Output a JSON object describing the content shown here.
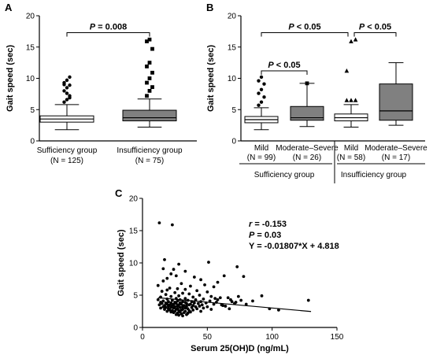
{
  "chart_data": [
    {
      "panel": "A",
      "type": "box",
      "ylabel": "Gait speed (sec)",
      "ylim": [
        0,
        20
      ],
      "yticks": [
        0,
        5,
        10,
        15,
        20
      ],
      "categories": [
        {
          "name": "Sufficiency group",
          "n": "(N = 125)",
          "fill": "#ffffff"
        },
        {
          "name": "Insufficiency group",
          "n": "(N = 75)",
          "fill": "#808080"
        }
      ],
      "boxes": [
        {
          "whisker_low": 1.8,
          "q1": 3.0,
          "median": 3.5,
          "q3": 4.0,
          "whisker_high": 5.8,
          "outliers": [
            6.2,
            6.6,
            7.2,
            8.0,
            8.5,
            8.9,
            9.3,
            9.7,
            10.2,
            9.0,
            7.6,
            6.9
          ]
        },
        {
          "whisker_low": 2.2,
          "q1": 3.2,
          "median": 3.7,
          "q3": 4.9,
          "whisker_high": 6.7,
          "outliers": [
            7.2,
            8.0,
            8.6,
            9.3,
            10.0,
            10.9,
            11.9,
            12.5,
            14.7,
            15.9,
            16.2
          ]
        }
      ],
      "comparisons": [
        {
          "from": 0,
          "to": 1,
          "y": 17.3,
          "label": "P = 0.008"
        }
      ]
    },
    {
      "panel": "B",
      "type": "box",
      "ylabel": "Gait speed (sec)",
      "ylim": [
        0,
        20
      ],
      "yticks": [
        0,
        5,
        10,
        15,
        20
      ],
      "categories": [
        {
          "name": "Mild",
          "n": "(N = 99)",
          "fill": "#ffffff"
        },
        {
          "name": "Moderate–Severe",
          "n": "(N = 26)",
          "fill": "#808080"
        },
        {
          "name": "Mild",
          "n": "(N = 58)",
          "fill": "#ffffff"
        },
        {
          "name": "Moderate–Severe",
          "n": "(N = 17)",
          "fill": "#808080"
        }
      ],
      "groups": [
        {
          "label": "Sufficiency group",
          "members": [
            0,
            1
          ]
        },
        {
          "label": "Insufficiency group",
          "members": [
            2,
            3
          ]
        }
      ],
      "boxes": [
        {
          "whisker_low": 1.8,
          "q1": 2.9,
          "median": 3.4,
          "q3": 3.9,
          "whisker_high": 5.3,
          "outliers": [
            5.7,
            6.2,
            7.0,
            7.6,
            8.2,
            9.1,
            9.6,
            10.2
          ]
        },
        {
          "whisker_low": 2.3,
          "q1": 3.3,
          "median": 3.7,
          "q3": 5.5,
          "whisker_high": 9.2,
          "outliers": [
            9.2
          ]
        },
        {
          "whisker_low": 2.2,
          "q1": 3.2,
          "median": 3.7,
          "q3": 4.3,
          "whisker_high": 5.8,
          "outliers": [
            6.5,
            6.5,
            6.5,
            11.2,
            15.9,
            16.2
          ]
        },
        {
          "whisker_low": 2.5,
          "q1": 3.3,
          "median": 4.8,
          "q3": 9.1,
          "whisker_high": 12.5,
          "outliers": []
        }
      ],
      "comparisons": [
        {
          "from": 0,
          "to": 2,
          "y": 17.3,
          "label": "P < 0.05"
        },
        {
          "from": 2,
          "to": 3,
          "y": 17.3,
          "label": "P < 0.05"
        },
        {
          "from": 0,
          "to": 1,
          "y": 11.2,
          "label": "P < 0.05"
        }
      ]
    },
    {
      "panel": "C",
      "type": "scatter",
      "xlabel": "Serum 25(OH)D (ng/mL)",
      "ylabel": "Gait speed (sec)",
      "xlim": [
        0,
        150
      ],
      "ylim": [
        0,
        20
      ],
      "xticks": [
        0,
        50,
        100,
        150
      ],
      "yticks": [
        0,
        5,
        10,
        15,
        20
      ],
      "annotations": [
        "r = -0.153",
        "P = 0.03",
        "Y = -0.01807*X + 4.818"
      ],
      "regression": {
        "slope": -0.01807,
        "intercept": 4.818,
        "x_range": [
          12,
          130
        ]
      },
      "points": [
        [
          13,
          16.2
        ],
        [
          23,
          15.9
        ],
        [
          17,
          10.5
        ],
        [
          51,
          10.1
        ],
        [
          28,
          9.8
        ],
        [
          73,
          9.4
        ],
        [
          16,
          9.1
        ],
        [
          24,
          9.0
        ],
        [
          33,
          8.7
        ],
        [
          22,
          8.3
        ],
        [
          26,
          8.0
        ],
        [
          63,
          8.0
        ],
        [
          78,
          7.9
        ],
        [
          40,
          7.8
        ],
        [
          19,
          7.6
        ],
        [
          45,
          7.4
        ],
        [
          16,
          7.2
        ],
        [
          58,
          7.0
        ],
        [
          30,
          6.8
        ],
        [
          48,
          6.6
        ],
        [
          12,
          6.5
        ],
        [
          37,
          6.4
        ],
        [
          55,
          6.3
        ],
        [
          21,
          6.1
        ],
        [
          27,
          6.0
        ],
        [
          33,
          5.9
        ],
        [
          19,
          5.8
        ],
        [
          42,
          5.7
        ],
        [
          15,
          5.6
        ],
        [
          50,
          5.5
        ],
        [
          25,
          5.4
        ],
        [
          31,
          5.3
        ],
        [
          36,
          5.2
        ],
        [
          18,
          5.1
        ],
        [
          44,
          5.0
        ],
        [
          28,
          4.9
        ],
        [
          22,
          4.8
        ],
        [
          53,
          4.8
        ],
        [
          14,
          4.7
        ],
        [
          39,
          4.7
        ],
        [
          60,
          4.6
        ],
        [
          26,
          4.5
        ],
        [
          33,
          4.5
        ],
        [
          19,
          4.4
        ],
        [
          47,
          4.4
        ],
        [
          12,
          4.3
        ],
        [
          29,
          4.3
        ],
        [
          41,
          4.3
        ],
        [
          68,
          4.3
        ],
        [
          23,
          4.2
        ],
        [
          35,
          4.2
        ],
        [
          16,
          4.1
        ],
        [
          52,
          4.1
        ],
        [
          27,
          4.1
        ],
        [
          31,
          4.0
        ],
        [
          20,
          4.0
        ],
        [
          38,
          4.0
        ],
        [
          45,
          4.0
        ],
        [
          14,
          3.9
        ],
        [
          25,
          3.9
        ],
        [
          33,
          3.9
        ],
        [
          57,
          3.9
        ],
        [
          18,
          3.8
        ],
        [
          22,
          3.8
        ],
        [
          29,
          3.8
        ],
        [
          40,
          3.8
        ],
        [
          49,
          3.8
        ],
        [
          15,
          3.7
        ],
        [
          26,
          3.7
        ],
        [
          34,
          3.7
        ],
        [
          43,
          3.7
        ],
        [
          71,
          3.7
        ],
        [
          19,
          3.6
        ],
        [
          24,
          3.6
        ],
        [
          30,
          3.6
        ],
        [
          37,
          3.6
        ],
        [
          55,
          3.6
        ],
        [
          13,
          3.5
        ],
        [
          21,
          3.5
        ],
        [
          28,
          3.5
        ],
        [
          36,
          3.5
        ],
        [
          46,
          3.5
        ],
        [
          17,
          3.4
        ],
        [
          23,
          3.4
        ],
        [
          32,
          3.4
        ],
        [
          39,
          3.4
        ],
        [
          62,
          3.4
        ],
        [
          20,
          3.3
        ],
        [
          27,
          3.3
        ],
        [
          34,
          3.3
        ],
        [
          44,
          3.3
        ],
        [
          16,
          3.2
        ],
        [
          25,
          3.2
        ],
        [
          31,
          3.2
        ],
        [
          41,
          3.2
        ],
        [
          50,
          3.2
        ],
        [
          18,
          3.1
        ],
        [
          22,
          3.1
        ],
        [
          29,
          3.1
        ],
        [
          38,
          3.1
        ],
        [
          14,
          3.0
        ],
        [
          24,
          3.0
        ],
        [
          33,
          3.0
        ],
        [
          47,
          3.0
        ],
        [
          20,
          2.9
        ],
        [
          27,
          2.9
        ],
        [
          35,
          2.9
        ],
        [
          42,
          2.9
        ],
        [
          17,
          2.8
        ],
        [
          26,
          2.8
        ],
        [
          31,
          2.8
        ],
        [
          53,
          2.8
        ],
        [
          21,
          2.7
        ],
        [
          30,
          2.7
        ],
        [
          39,
          2.7
        ],
        [
          23,
          2.6
        ],
        [
          28,
          2.6
        ],
        [
          36,
          2.6
        ],
        [
          19,
          2.5
        ],
        [
          25,
          2.5
        ],
        [
          33,
          2.5
        ],
        [
          45,
          2.5
        ],
        [
          22,
          2.4
        ],
        [
          29,
          2.4
        ],
        [
          37,
          2.4
        ],
        [
          24,
          2.3
        ],
        [
          32,
          2.3
        ],
        [
          27,
          2.2
        ],
        [
          35,
          2.2
        ],
        [
          30,
          2.1
        ],
        [
          26,
          2.0
        ],
        [
          34,
          2.0
        ],
        [
          28,
          1.9
        ],
        [
          31,
          1.8
        ],
        [
          66,
          4.6
        ],
        [
          76,
          4.2
        ],
        [
          92,
          4.9
        ],
        [
          98,
          2.9
        ],
        [
          105,
          2.7
        ],
        [
          128,
          4.2
        ],
        [
          58,
          4.3
        ],
        [
          64,
          3.3
        ],
        [
          72,
          3.9
        ],
        [
          80,
          3.6
        ],
        [
          67,
          2.9
        ],
        [
          85,
          4.1
        ],
        [
          74,
          4.8
        ],
        [
          61,
          3.5
        ],
        [
          56,
          4.5
        ],
        [
          69,
          4.0
        ]
      ]
    }
  ]
}
